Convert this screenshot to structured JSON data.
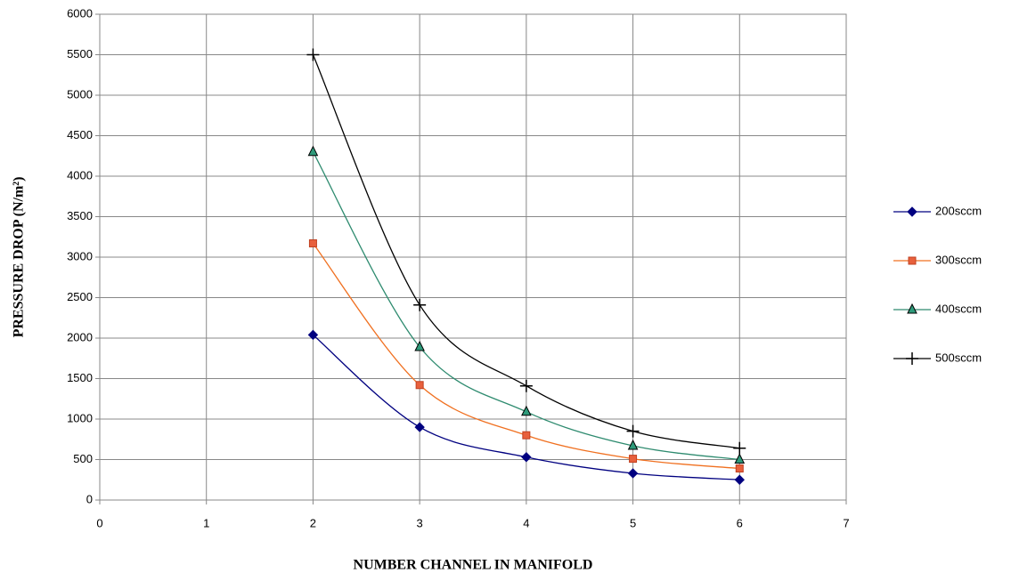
{
  "chart_data": {
    "type": "line",
    "x_label": "NUMBER CHANNEL IN MANIFOLD",
    "y_label": "PRESSURE DROP (N/m²)",
    "x": [
      2,
      3,
      4,
      5,
      6
    ],
    "series": [
      {
        "name": "200sccm",
        "color": "#000080",
        "marker": "diamond",
        "values": [
          2040,
          900,
          530,
          330,
          250
        ]
      },
      {
        "name": "300sccm",
        "color": "#f07020",
        "marker": "square",
        "values": [
          3170,
          1420,
          800,
          510,
          390
        ]
      },
      {
        "name": "400sccm",
        "color": "#2e8b6f",
        "marker": "triangle",
        "values": [
          4300,
          1890,
          1090,
          670,
          500
        ]
      },
      {
        "name": "500sccm",
        "color": "#000000",
        "marker": "plus",
        "values": [
          5500,
          2410,
          1410,
          850,
          640
        ]
      }
    ],
    "xlim": [
      0,
      7
    ],
    "xticks": [
      0,
      1,
      2,
      3,
      4,
      5,
      6,
      7
    ],
    "ylim": [
      0,
      6000
    ],
    "yticks": [
      0,
      500,
      1000,
      1500,
      2000,
      2500,
      3000,
      3500,
      4000,
      4500,
      5000,
      5500,
      6000
    ],
    "grid": true,
    "legend": "right"
  }
}
